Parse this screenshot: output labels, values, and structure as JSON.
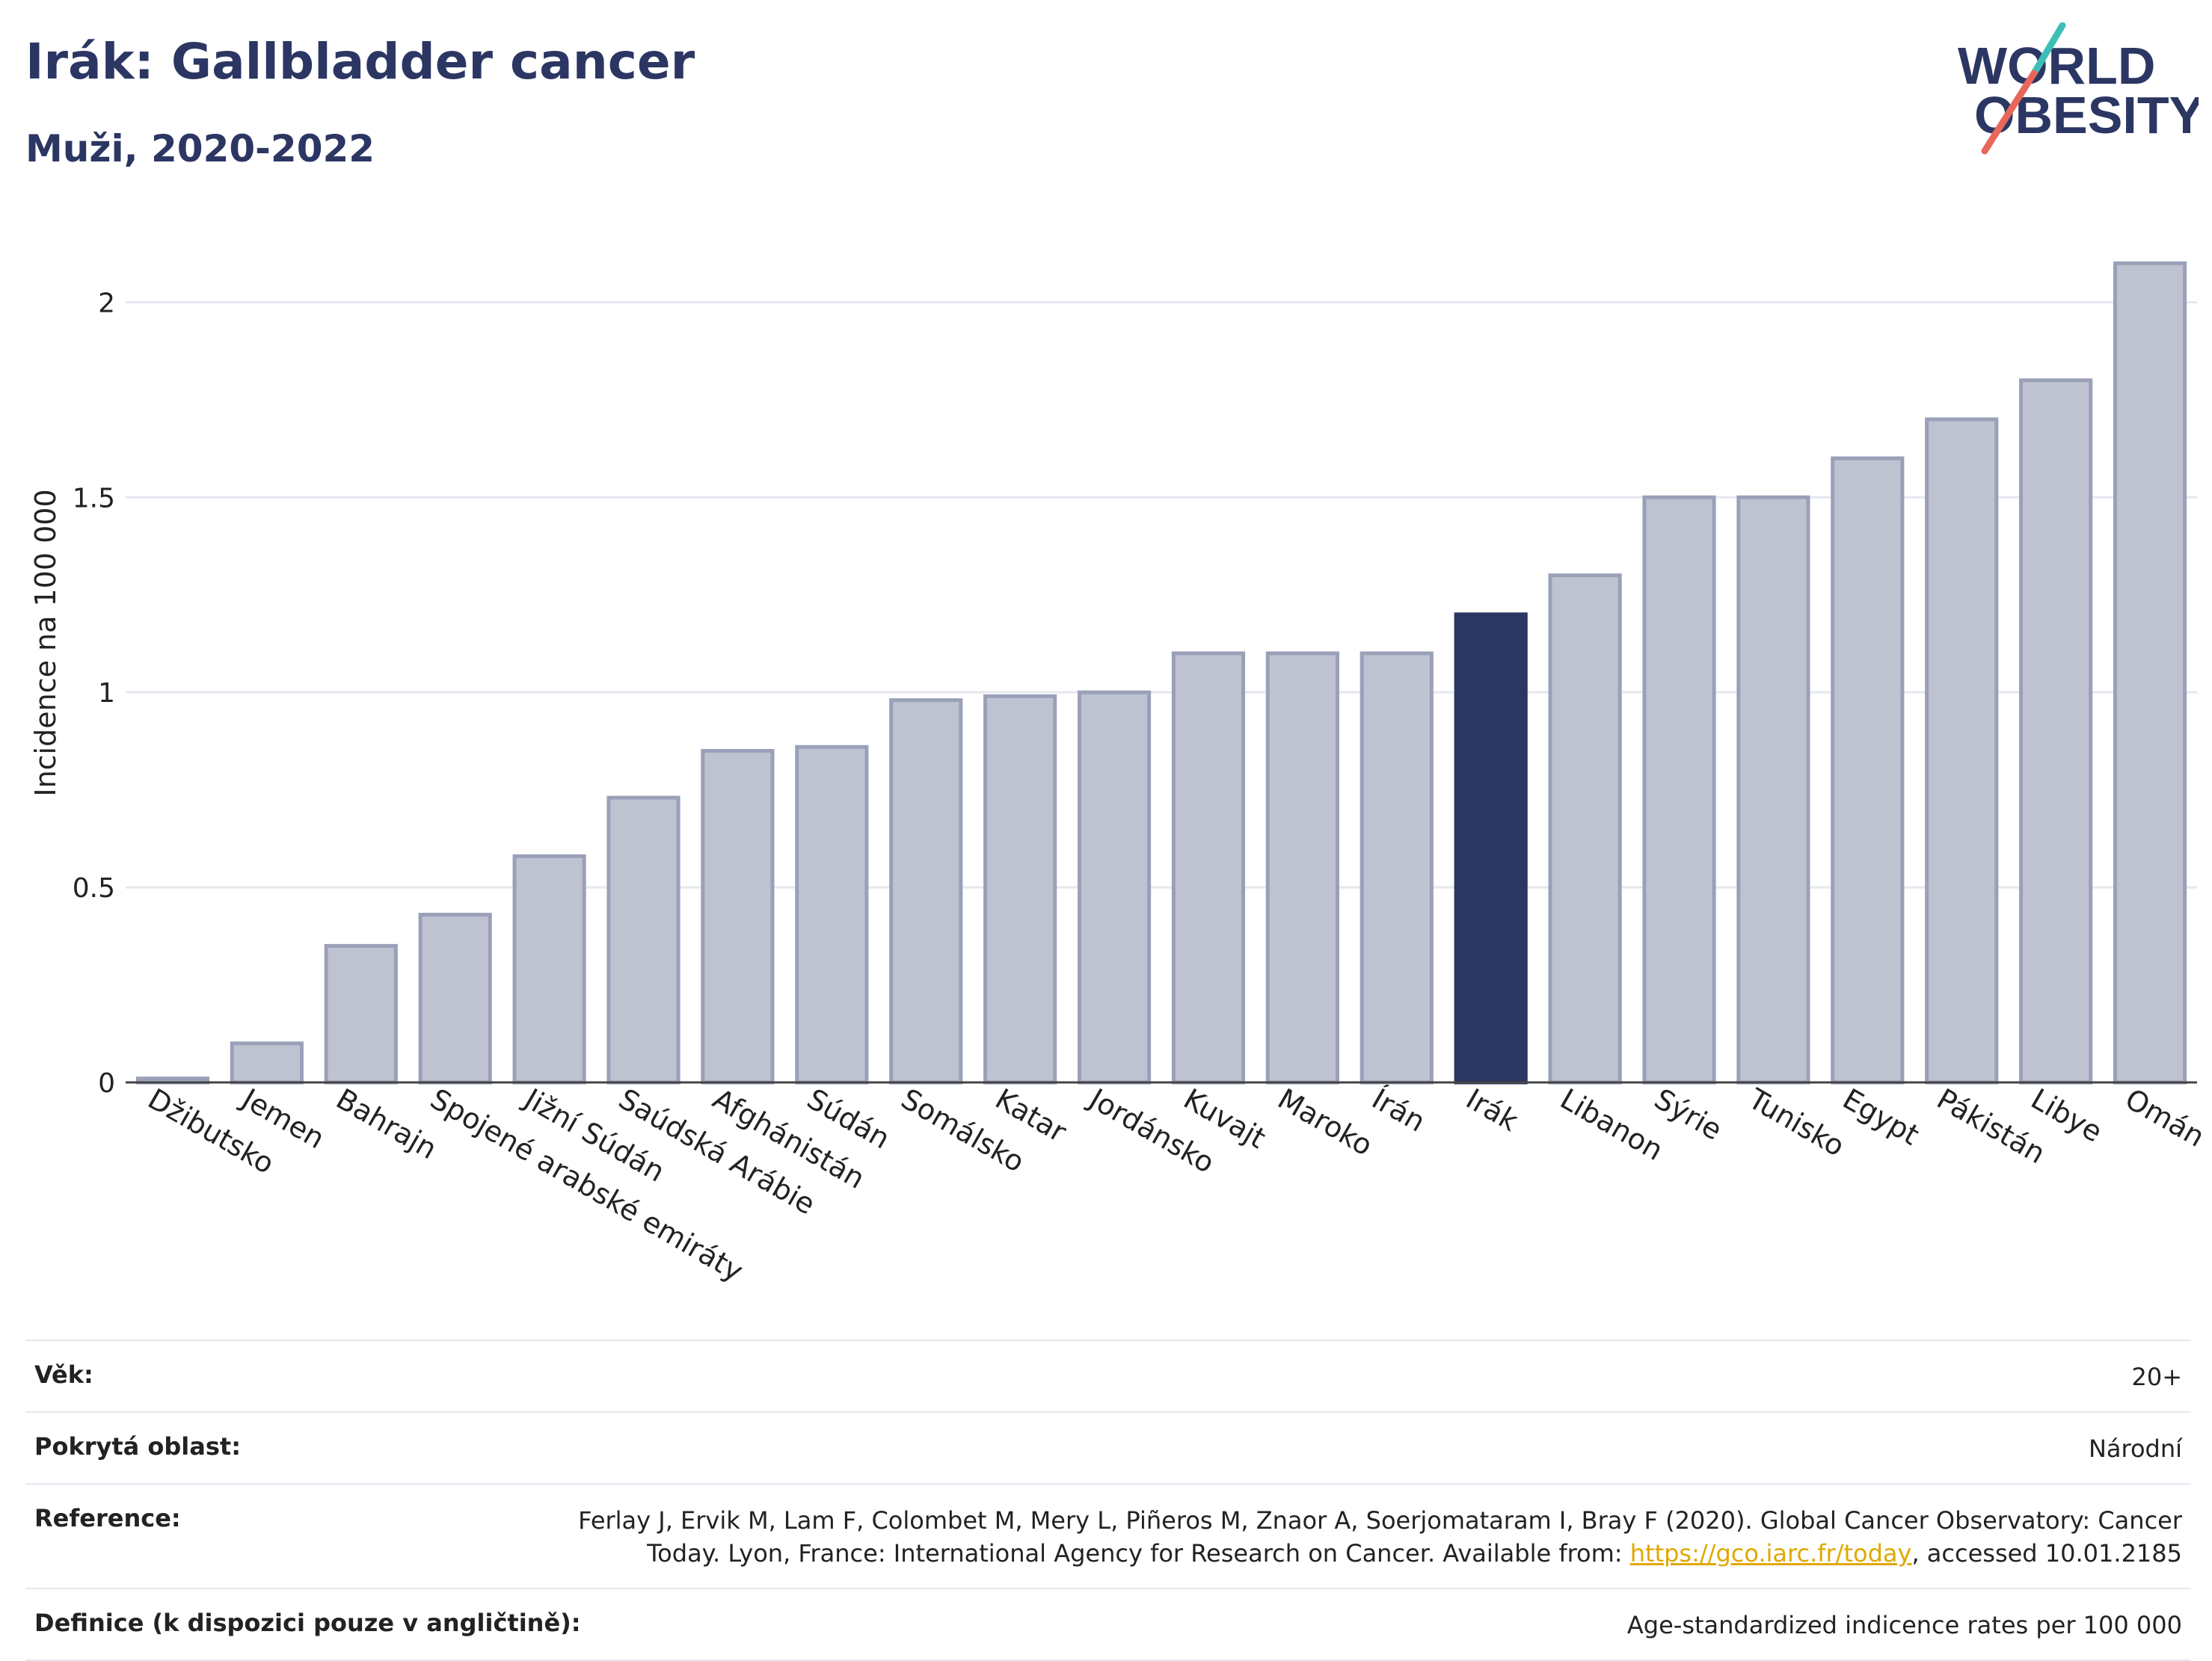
{
  "header": {
    "title": "Irák: Gallbladder cancer",
    "subtitle": "Muži, 2020-2022"
  },
  "logo": {
    "line1": "WORLD",
    "line2": "OBESITY",
    "colors": {
      "text": "#2b3663",
      "slash_red": "#e8675a",
      "slash_teal": "#3dbfb8"
    }
  },
  "colors": {
    "highlight": "#2b3663",
    "bar_fill": "#bfc3d1",
    "bar_stroke": "#9aa0b8",
    "grid": "#e6e8ef",
    "link": "#e0a800"
  },
  "chart_data": {
    "type": "bar",
    "ylabel": "Incidence na 100 000",
    "xlabel": "",
    "ylim": [
      0,
      2.2
    ],
    "yticks": [
      0,
      0.5,
      1,
      1.5,
      2
    ],
    "ytick_labels": [
      "0",
      "0.5",
      "1",
      "1.5",
      "2"
    ],
    "grid": true,
    "highlight": "Irák",
    "categories": [
      "Džibutsko",
      "Jemen",
      "Bahrajn",
      "Spojené arabské emiráty",
      "Jižní Súdán",
      "Saúdská Arábie",
      "Afghánistán",
      "Súdán",
      "Somálsko",
      "Katar",
      "Jordánsko",
      "Kuvajt",
      "Maroko",
      "Írán",
      "Irák",
      "Libanon",
      "Sýrie",
      "Tunisko",
      "Egypt",
      "Pákistán",
      "Libye",
      "Omán"
    ],
    "values": [
      0.01,
      0.1,
      0.35,
      0.43,
      0.58,
      0.73,
      0.85,
      0.86,
      0.98,
      0.99,
      1.0,
      1.1,
      1.1,
      1.1,
      1.2,
      1.3,
      1.5,
      1.5,
      1.6,
      1.7,
      1.8,
      2.1
    ]
  },
  "footer": {
    "rows": [
      {
        "label": "Věk:",
        "value": "20+"
      },
      {
        "label": "Pokrytá oblast:",
        "value": "Národní"
      },
      {
        "label": "Reference:",
        "value_line1": "Ferlay J, Ervik M, Lam F, Colombet M, Mery L, Piñeros M, Znaor A, Soerjomataram I, Bray F (2020). Global Cancer Observatory: Cancer",
        "value_line2_pre": "Today. Lyon, France: International Agency for Research on Cancer. Available from: ",
        "link": "https://gco.iarc.fr/today",
        "value_line2_post": ", accessed 10.01.2185"
      },
      {
        "label": "Definice (k dispozici pouze v angličtině):",
        "value": "Age-standardized indicence rates per 100 000"
      }
    ]
  }
}
